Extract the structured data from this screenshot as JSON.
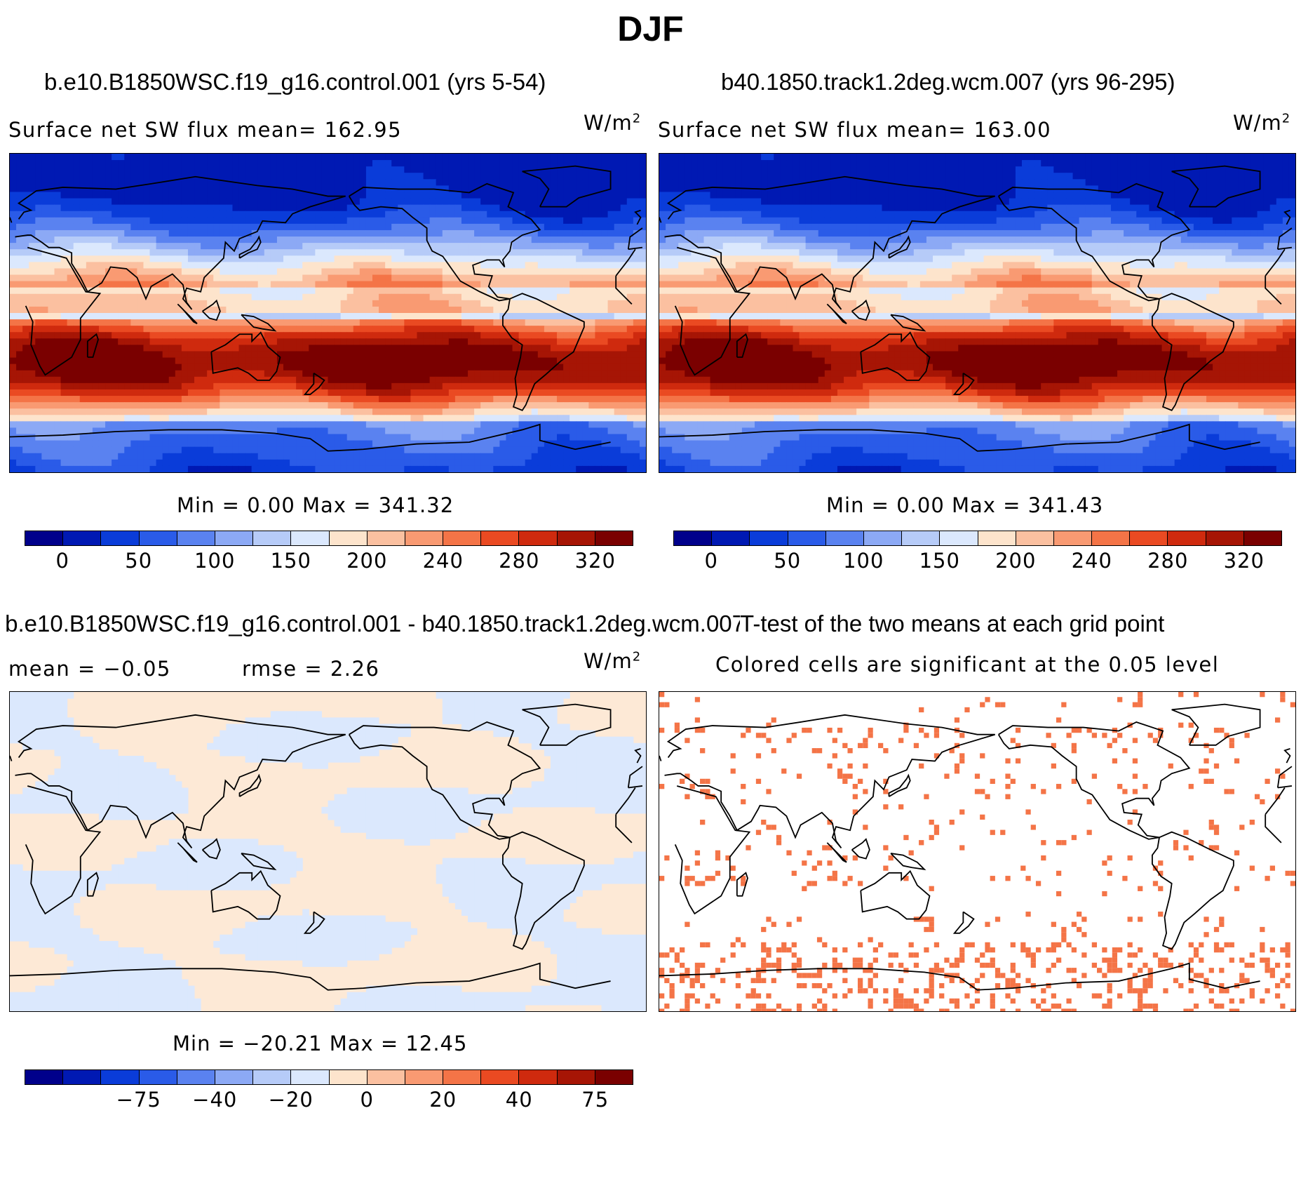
{
  "title": "DJF",
  "colors": {
    "full_scale": [
      "#00008b",
      "#0019b3",
      "#0a3cd9",
      "#2a5be8",
      "#5a82f0",
      "#8ca9f5",
      "#b6cbf8",
      "#dbe8fd",
      "#fde4cc",
      "#fbc0a0",
      "#f99a72",
      "#f47447",
      "#ea4a22",
      "#cf2a0e",
      "#a61505",
      "#7a0000"
    ],
    "diff_neg": "#dbe8fd",
    "diff_pos": "#fde9d6",
    "signif": "#f47447",
    "coast": "#000000"
  },
  "panels": {
    "top_left": {
      "case_title": "b.e10.B1850WSC.f19_g16.control.001 (yrs 5-54)",
      "subtitle": "Surface  net  SW  flux mean=  162.95",
      "units": "W/m",
      "units_sup": "2",
      "stats": "Min  =      0.00  Max  =  341.32"
    },
    "top_right": {
      "case_title": "b40.1850.track1.2deg.wcm.007 (yrs 96-295)",
      "subtitle": "Surface  net  SW  flux mean=  163.00",
      "units": "W/m",
      "units_sup": "2",
      "stats": "Min  =      0.00  Max  =  341.43"
    },
    "bottom_left": {
      "case_title": "b.e10.B1850WSC.f19_g16.control.001 - b40.1850.track1.2deg.wcm.007",
      "subtitle_left": "mean  =    −0.05",
      "subtitle_right": "rmse  =      2.26",
      "units": "W/m",
      "units_sup": "2",
      "stats": "Min  =  −20.21  Max  =    12.45"
    },
    "bottom_right": {
      "case_title": "T-test of the two means at each grid point",
      "subtitle": "Colored  cells  are  significant  at  the  0.05  level"
    }
  },
  "chart_data": [
    {
      "type": "heatmap",
      "name": "control mean",
      "variable": "Surface net SW flux",
      "units": "W/m2",
      "mean": 162.95,
      "min": 0.0,
      "max": 341.32,
      "levels": [
        0,
        25,
        50,
        75,
        100,
        125,
        150,
        175,
        200,
        220,
        240,
        260,
        280,
        300,
        320
      ],
      "tick_labels": [
        "0",
        "50",
        "100",
        "150",
        "200",
        "240",
        "280",
        "320"
      ]
    },
    {
      "type": "heatmap",
      "name": "wcm mean",
      "variable": "Surface net SW flux",
      "units": "W/m2",
      "mean": 163.0,
      "min": 0.0,
      "max": 341.43,
      "levels": [
        0,
        25,
        50,
        75,
        100,
        125,
        150,
        175,
        200,
        220,
        240,
        260,
        280,
        300,
        320
      ],
      "tick_labels": [
        "0",
        "50",
        "100",
        "150",
        "200",
        "240",
        "280",
        "320"
      ]
    },
    {
      "type": "heatmap",
      "name": "difference",
      "units": "W/m2",
      "mean": -0.05,
      "rmse": 2.26,
      "min": -20.21,
      "max": 12.45,
      "tick_labels": [
        "−75",
        "−40",
        "−20",
        "0",
        "20",
        "40",
        "75"
      ]
    },
    {
      "type": "heatmap",
      "name": "t-test significance",
      "significance_level": 0.05
    }
  ]
}
